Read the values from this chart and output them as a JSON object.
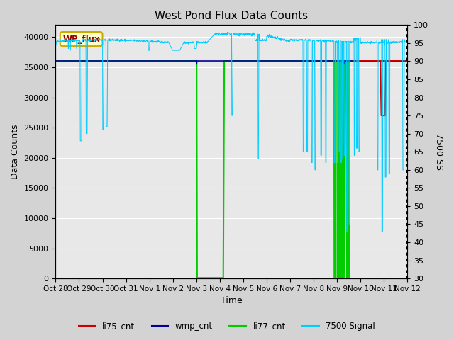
{
  "title": "West Pond Flux Data Counts",
  "xlabel": "Time",
  "ylabel_left": "Data Counts",
  "ylabel_right": "7500 SS",
  "annotation": "WP_flux",
  "left_ylim": [
    0,
    42000
  ],
  "right_ylim": [
    30,
    100
  ],
  "left_yticks": [
    0,
    5000,
    10000,
    15000,
    20000,
    25000,
    30000,
    35000,
    40000
  ],
  "right_yticks": [
    30,
    35,
    40,
    45,
    50,
    55,
    60,
    65,
    70,
    75,
    80,
    85,
    90,
    95,
    100
  ],
  "fig_bg_color": "#d3d3d3",
  "plot_bg_color": "#e8e8e8",
  "line_li75_color": "#cc0000",
  "line_wmp_color": "#000099",
  "line_li77_color": "#00cc00",
  "line_7500_color": "#00ccff",
  "legend_labels": [
    "li75_cnt",
    "wmp_cnt",
    "li77_cnt",
    "7500 Signal"
  ],
  "xtick_positions": [
    0,
    1,
    2,
    3,
    4,
    5,
    6,
    7,
    8,
    9,
    10,
    11,
    12,
    13,
    14,
    15
  ],
  "xtick_labels": [
    "Oct 28",
    "Oct 29",
    "Oct 30",
    "Oct 31",
    "Nov 1",
    "Nov 2",
    "Nov 3",
    "Nov 4",
    "Nov 5",
    "Nov 6",
    "Nov 7",
    "Nov 8",
    "Nov 9",
    "Nov 10",
    "Nov 11",
    "Nov 12"
  ]
}
